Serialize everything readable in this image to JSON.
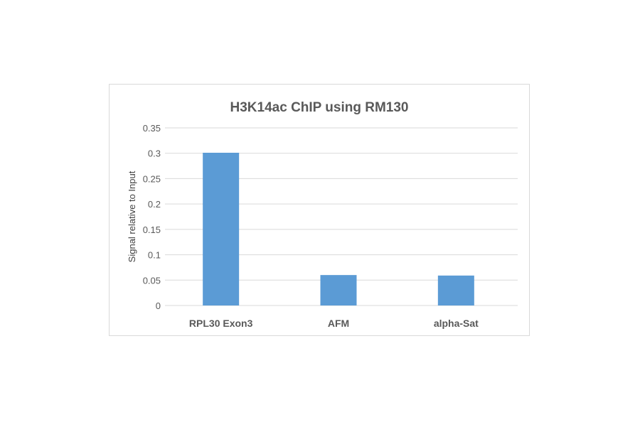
{
  "chart_data": {
    "type": "bar",
    "title": "H3K14ac ChIP using RM130",
    "xlabel": "",
    "ylabel": "Signal relative to Input",
    "categories": [
      "RPL30 Exon3",
      "AFM",
      "alpha-Sat"
    ],
    "values": [
      0.301,
      0.06,
      0.059
    ],
    "ylim": [
      0,
      0.35
    ],
    "yticks": [
      "0",
      "0.05",
      "0.1",
      "0.15",
      "0.2",
      "0.25",
      "0.3",
      "0.35"
    ],
    "grid": true,
    "legend": "none",
    "bar_color": "#5b9bd5"
  }
}
